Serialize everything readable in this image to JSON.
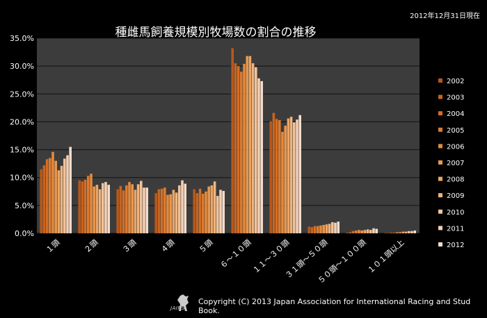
{
  "date_note": "2012年12月31日現在",
  "copyright": "Copyright (C) 2013 Japan Association for International Racing and Stud Book.",
  "logo": {
    "icon": "horse-logo-icon",
    "text": "JAIRS"
  },
  "chart_data": {
    "type": "bar",
    "title": "種雌馬飼養規模別牧場数の割合の推移",
    "xlabel": "",
    "ylabel": "",
    "ylim": [
      0,
      35
    ],
    "yticks": [
      "0.0%",
      "5.0%",
      "10.0%",
      "15.0%",
      "20.0%",
      "25.0%",
      "30.0%",
      "35.0%"
    ],
    "grid": true,
    "legend": "right",
    "categories": [
      "１頭",
      "２頭",
      "３頭",
      "４頭",
      "５頭",
      "６～１０頭",
      "１１～３０頭",
      "３１頭～５０頭",
      "５０頭～１００頭",
      "１０１頭以上"
    ],
    "series": [
      {
        "name": "2002",
        "color": "#b8581a",
        "values": [
          11.5,
          9.5,
          7.9,
          7.2,
          7.9,
          33.2,
          20.1,
          1.2,
          0.1,
          0.05
        ]
      },
      {
        "name": "2003",
        "color": "#c8641f",
        "values": [
          12.2,
          9.3,
          8.5,
          7.9,
          7.2,
          30.5,
          21.6,
          1.1,
          0.2,
          0.05
        ]
      },
      {
        "name": "2004",
        "color": "#d46e25",
        "values": [
          13.3,
          9.6,
          7.7,
          8.0,
          8.0,
          30.0,
          20.5,
          1.3,
          0.4,
          0.1
        ]
      },
      {
        "name": "2005",
        "color": "#dc7b2e",
        "values": [
          13.5,
          10.3,
          8.6,
          8.2,
          7.1,
          29.0,
          20.3,
          1.3,
          0.5,
          0.1
        ]
      },
      {
        "name": "2006",
        "color": "#e48a3c",
        "values": [
          14.6,
          10.7,
          9.2,
          6.9,
          7.5,
          30.4,
          18.2,
          1.4,
          0.6,
          0.2
        ]
      },
      {
        "name": "2007",
        "color": "#e8974e",
        "values": [
          13.0,
          8.4,
          8.8,
          7.0,
          8.4,
          31.8,
          19.3,
          1.5,
          0.5,
          0.2
        ]
      },
      {
        "name": "2008",
        "color": "#eca665",
        "values": [
          11.3,
          8.7,
          7.8,
          7.8,
          8.6,
          31.8,
          20.6,
          1.6,
          0.6,
          0.3
        ]
      },
      {
        "name": "2009",
        "color": "#efb57f",
        "values": [
          12.1,
          7.9,
          8.8,
          7.3,
          9.3,
          30.5,
          20.9,
          1.7,
          0.7,
          0.3
        ]
      },
      {
        "name": "2010",
        "color": "#f2c39a",
        "values": [
          13.4,
          9.0,
          9.4,
          8.6,
          6.7,
          29.8,
          19.9,
          2.0,
          0.6,
          0.4
        ]
      },
      {
        "name": "2011",
        "color": "#f4d0b5",
        "values": [
          14.0,
          9.2,
          8.2,
          9.5,
          7.8,
          27.8,
          20.4,
          1.9,
          0.9,
          0.4
        ]
      },
      {
        "name": "2012",
        "color": "#f5dccb",
        "values": [
          15.5,
          8.7,
          8.2,
          8.9,
          7.6,
          27.3,
          21.2,
          2.1,
          0.8,
          0.5
        ]
      }
    ]
  }
}
